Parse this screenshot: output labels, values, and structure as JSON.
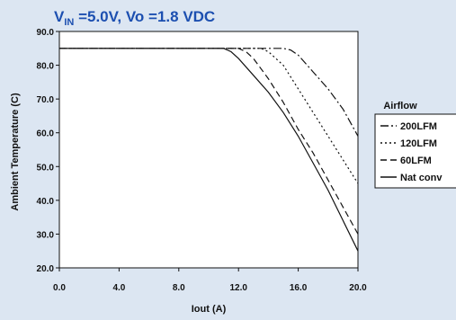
{
  "chart_data": {
    "type": "line",
    "title": {
      "prefix": "V",
      "sub": "IN",
      "rest": " =5.0V, Vo =1.8 VDC"
    },
    "xlabel": "Iout  (A)",
    "ylabel": "Ambient Temperature  (C)",
    "xlim": [
      0,
      20
    ],
    "ylim": [
      20,
      90
    ],
    "xticks": [
      "0.0",
      "4.0",
      "8.0",
      "12.0",
      "16.0",
      "20.0"
    ],
    "yticks": [
      "20.0",
      "30.0",
      "40.0",
      "50.0",
      "60.0",
      "70.0",
      "80.0",
      "90.0"
    ],
    "legend_title": "Airflow",
    "legend_position": "right",
    "grid": false,
    "series": [
      {
        "name": "200LFM",
        "dash": "dashdot",
        "x": [
          0,
          15,
          15.5,
          16,
          17,
          18,
          19,
          20
        ],
        "y": [
          85,
          85,
          84.5,
          83,
          78,
          73,
          67,
          59
        ]
      },
      {
        "name": "120LFM",
        "dash": "dotted",
        "x": [
          0,
          13.5,
          14,
          15,
          16,
          17,
          18,
          19,
          20
        ],
        "y": [
          85,
          85,
          84,
          80,
          73,
          66,
          59,
          52,
          45
        ]
      },
      {
        "name": "60LFM",
        "dash": "dashed",
        "x": [
          0,
          12,
          12.5,
          13,
          14,
          15,
          16,
          17,
          18,
          19,
          20
        ],
        "y": [
          85,
          85,
          84,
          82,
          76,
          69,
          61,
          54,
          46,
          38,
          30
        ]
      },
      {
        "name": "Nat conv",
        "dash": "solid",
        "x": [
          0,
          11,
          11.5,
          12,
          13,
          14,
          15,
          16,
          17,
          18,
          19,
          20
        ],
        "y": [
          85,
          85,
          84,
          82,
          77,
          72,
          66,
          59,
          51,
          43,
          34,
          25
        ]
      }
    ]
  }
}
